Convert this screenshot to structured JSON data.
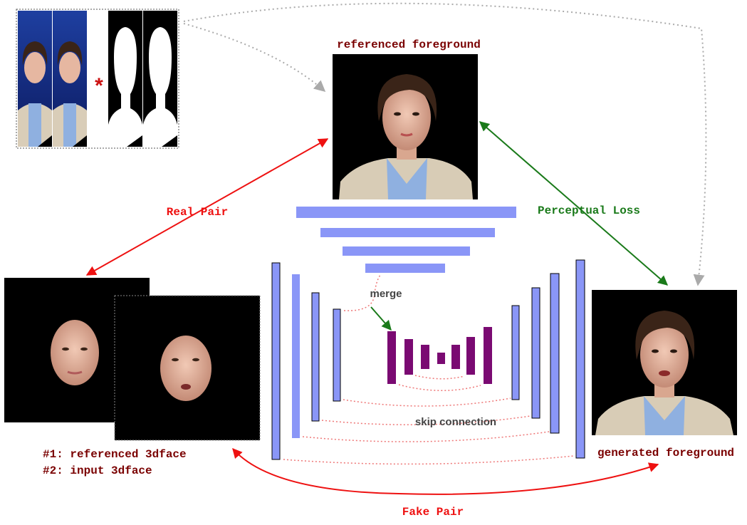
{
  "labels": {
    "referenced_foreground": "referenced foreground",
    "generated_foreground": "generated foreground",
    "real_pair": "Real Pair",
    "fake_pair": "Fake Pair",
    "perceptual_loss": "Perceptual Loss",
    "merge": "merge",
    "skip_connection": "skip connection",
    "ref_3dface": "#1: referenced 3dface",
    "input_3dface": "#2: input 3dface",
    "multiply": "*"
  },
  "colors": {
    "dark_red_text": "#7a0000",
    "red_arrow": "#ee1111",
    "green_arrow": "#1a7a1a",
    "gray_arrow": "#aaaaaa",
    "block_blue": "#8a96f7",
    "block_purple": "#7a0a72",
    "dotted_pink": "#ee7777",
    "merge_gray": "#444444"
  }
}
